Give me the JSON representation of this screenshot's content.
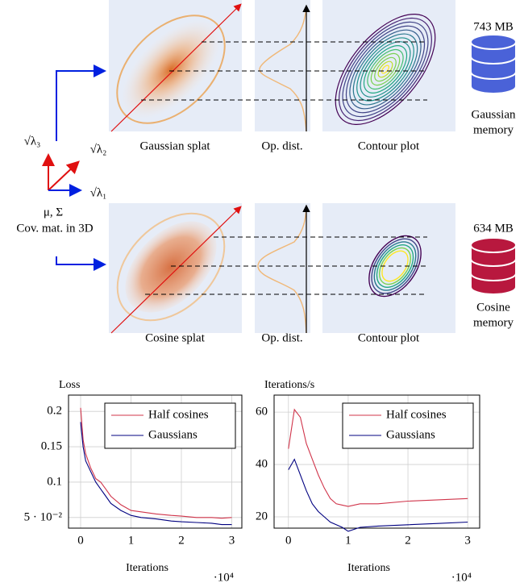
{
  "diagram": {
    "axes": {
      "l3": "√λ₃",
      "l2": "√λ₂",
      "l1": "√λ₁",
      "mu_sigma": "μ, Σ",
      "cov_label": "Cov. mat. in 3D"
    },
    "rows": [
      {
        "splat_label": "Gaussian splat",
        "dist_label": "Op. dist.",
        "contour_label": "Contour plot",
        "memory": "743 MB",
        "memory_label": [
          "Gaussian",
          "memory"
        ]
      },
      {
        "splat_label": "Cosine splat",
        "dist_label": "Op. dist.",
        "contour_label": "Contour plot",
        "memory": "634 MB",
        "memory_label": [
          "Cosine",
          "memory"
        ]
      }
    ]
  },
  "chart_data": [
    {
      "type": "line",
      "y_label": "Loss",
      "x_label": "Iterations",
      "x_multiplier": "·10⁴",
      "x": [
        0,
        0.05,
        0.1,
        0.2,
        0.3,
        0.4,
        0.5,
        0.6,
        0.8,
        1,
        1.2,
        1.5,
        1.8,
        2,
        2.3,
        2.6,
        2.8,
        3
      ],
      "series": [
        {
          "name": "Half cosines",
          "color": "#d0344a",
          "values": [
            0.205,
            0.16,
            0.14,
            0.12,
            0.105,
            0.1,
            0.09,
            0.08,
            0.068,
            0.06,
            0.058,
            0.055,
            0.053,
            0.052,
            0.05,
            0.05,
            0.049,
            0.05
          ]
        },
        {
          "name": "Gaussians",
          "color": "#000080",
          "values": [
            0.185,
            0.15,
            0.13,
            0.115,
            0.1,
            0.09,
            0.08,
            0.07,
            0.06,
            0.053,
            0.05,
            0.048,
            0.045,
            0.044,
            0.043,
            0.042,
            0.04,
            0.04
          ]
        }
      ],
      "xlim": [
        -0.24,
        3.2
      ],
      "xticks": [
        0,
        1,
        2,
        3
      ],
      "ylim": [
        0.035,
        0.223
      ],
      "yticks": [
        {
          "value": 0.05,
          "label": "5 · 10⁻²"
        },
        0.1,
        0.15,
        0.2
      ],
      "grid": true,
      "legend": "upper right"
    },
    {
      "type": "line",
      "y_label": "Iterations/s",
      "x_label": "Iterations",
      "x_multiplier": "·10⁴",
      "x": [
        0,
        0.1,
        0.2,
        0.3,
        0.4,
        0.5,
        0.6,
        0.7,
        0.8,
        0.9,
        1,
        1.2,
        1.5,
        2,
        2.5,
        3
      ],
      "series": [
        {
          "name": "Half cosines",
          "color": "#d0344a",
          "values": [
            46,
            61,
            58,
            48,
            42,
            36,
            31,
            27,
            25,
            24.5,
            24,
            25,
            25,
            26,
            26.5,
            27
          ]
        },
        {
          "name": "Gaussians",
          "color": "#000080",
          "values": [
            38,
            42,
            36,
            30,
            25,
            22,
            20,
            18,
            17,
            16,
            14.5,
            16,
            16.5,
            17,
            17.5,
            18
          ]
        }
      ],
      "xlim": [
        -0.24,
        3.2
      ],
      "xticks": [
        0,
        1,
        2,
        3
      ],
      "ylim": [
        15.7,
        66.5
      ],
      "yticks": [
        20,
        40,
        60
      ],
      "grid": true,
      "legend": "upper right"
    }
  ]
}
